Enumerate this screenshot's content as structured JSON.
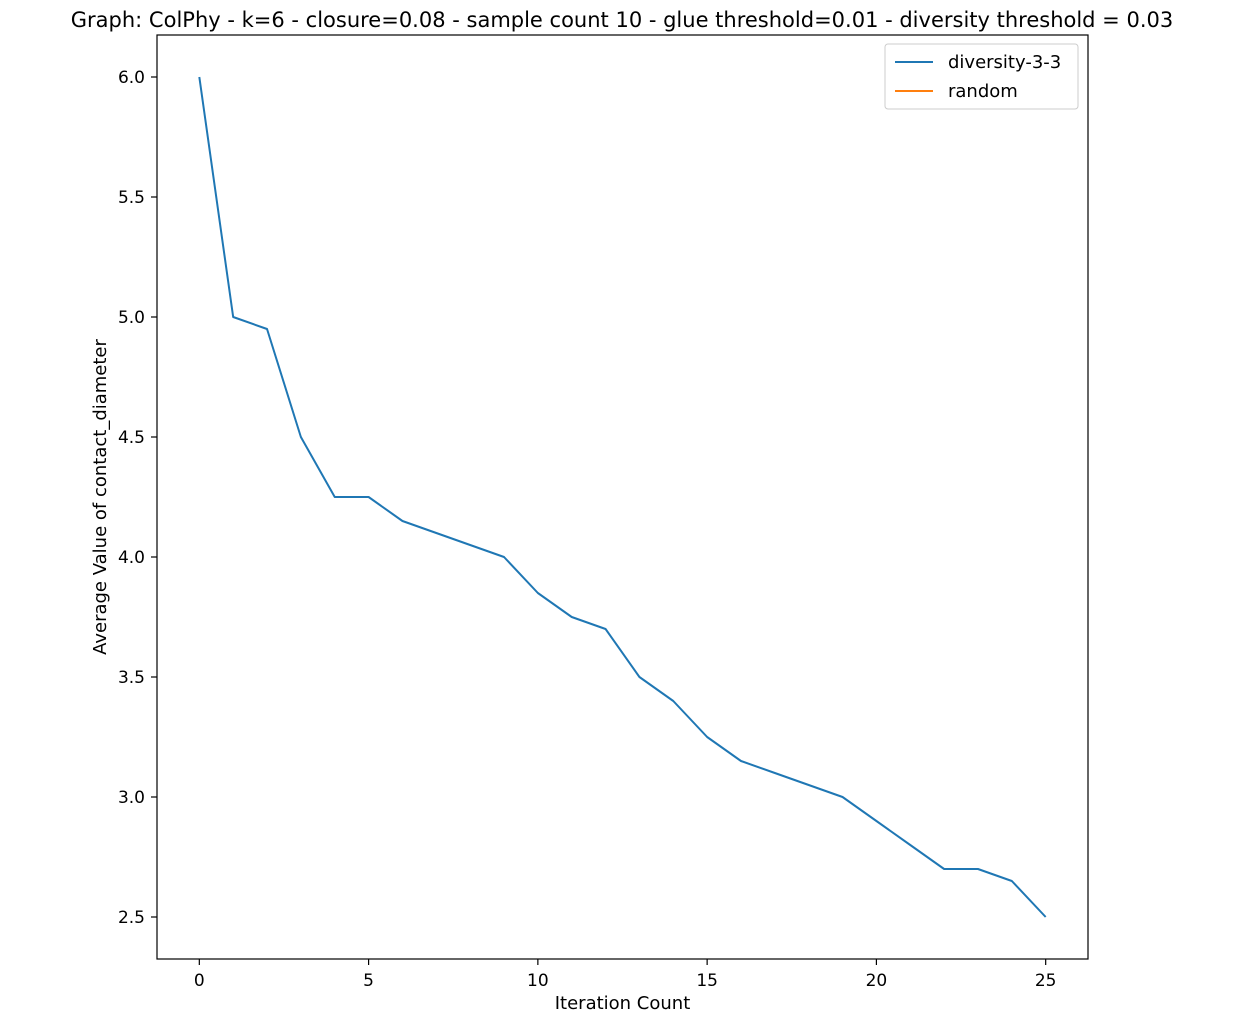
{
  "chart_data": {
    "type": "line",
    "title": "Graph: ColPhy - k=6 - closure=0.08 - sample count 10 - glue threshold=0.01 - diversity threshold = 0.03",
    "xlabel": "Iteration Count",
    "ylabel": "Average Value of contact_diameter",
    "xlim": [
      -1.25,
      26.25
    ],
    "ylim": [
      2.325,
      6.175
    ],
    "xticks": [
      0,
      5,
      10,
      15,
      20,
      25
    ],
    "xtick_labels": [
      "0",
      "5",
      "10",
      "15",
      "20",
      "25"
    ],
    "yticks": [
      2.5,
      3.0,
      3.5,
      4.0,
      4.5,
      5.0,
      5.5,
      6.0
    ],
    "ytick_labels": [
      "2.5",
      "3.0",
      "3.5",
      "4.0",
      "4.5",
      "5.0",
      "5.5",
      "6.0"
    ],
    "grid": false,
    "legend_position": "top-right",
    "series": [
      {
        "name": "diversity-3-3",
        "color": "#1f77b4",
        "x": [
          0,
          1,
          2,
          3,
          4,
          5,
          6,
          7,
          8,
          9,
          10,
          11,
          12,
          13,
          14,
          15,
          16,
          17,
          18,
          19,
          20,
          21,
          22,
          23,
          24,
          25
        ],
        "y": [
          6.0,
          5.0,
          4.95,
          4.5,
          4.25,
          4.25,
          4.15,
          4.1,
          4.05,
          4.0,
          3.85,
          3.75,
          3.7,
          3.5,
          3.4,
          3.25,
          3.15,
          3.1,
          3.05,
          3.0,
          2.9,
          2.8,
          2.7,
          2.7,
          2.65,
          2.5
        ]
      },
      {
        "name": "random",
        "color": "#ff7f0e",
        "x": [],
        "y": []
      }
    ]
  }
}
